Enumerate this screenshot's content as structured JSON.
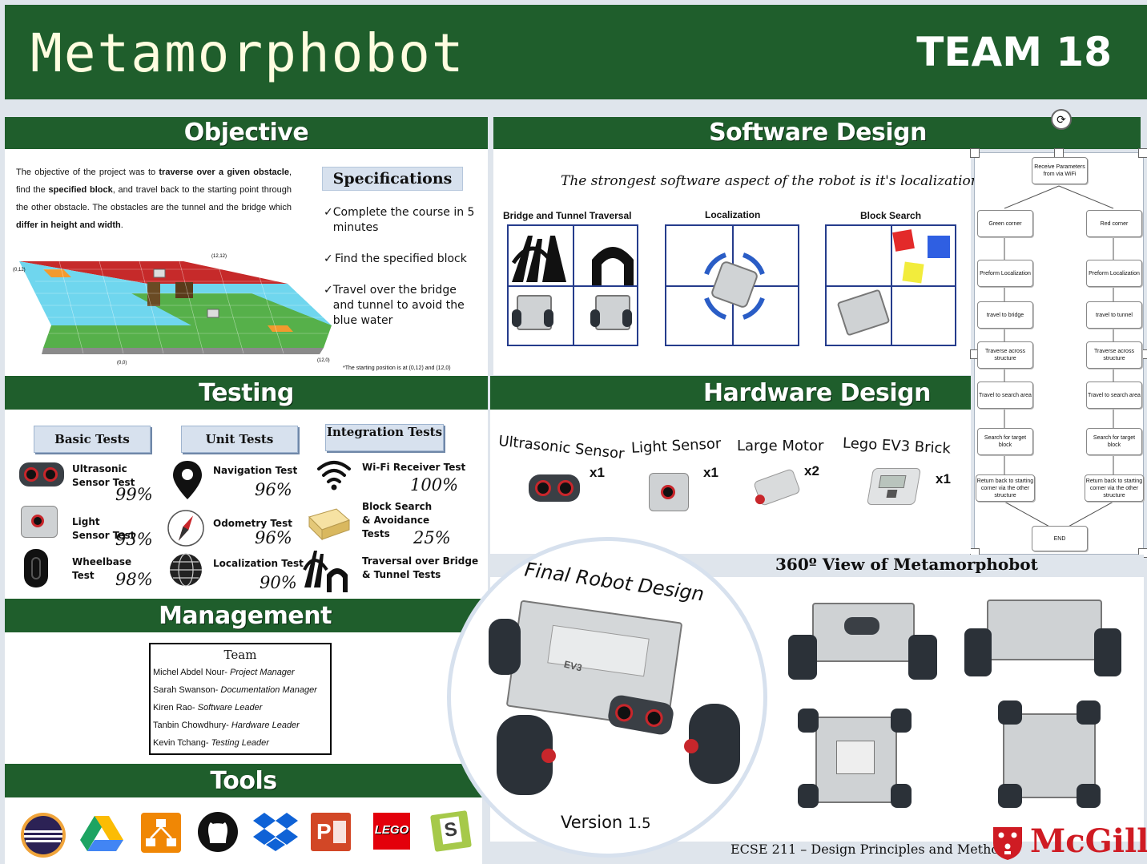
{
  "header": {
    "title": "Metamorphobot",
    "team": "TEAM 18"
  },
  "objective": {
    "title": "Objective",
    "text_parts": [
      "The objective of the project was to ",
      "traverse over a given obstacle",
      ", find the ",
      "specified block",
      ", and travel back to the starting point through the other obstacle. The obstacles are the tunnel and the bridge which ",
      "differ in height and width",
      "."
    ],
    "map_labels": {
      "tl": "(0,12)",
      "tr": "(12,12)",
      "bl": "(0,0)",
      "br": "(12,0)"
    },
    "footnote": "*The starting position is at (0,12) and (12,0)"
  },
  "specifications": {
    "title": "Specifications",
    "items": [
      {
        "check": "✓",
        "text": "Complete the course in 5 minutes"
      },
      {
        "check": "✓",
        "text": "Find the specified block"
      },
      {
        "check": "✓",
        "text": "Travel over the bridge and tunnel to avoid the blue water"
      }
    ]
  },
  "testing": {
    "title": "Testing",
    "columns": [
      "Basic Tests",
      "Unit Tests",
      "Integration Tests"
    ],
    "basic": [
      {
        "label": "Ultrasonic Sensor Test",
        "pct": "99%",
        "icon": "ultrasonic-sensor-icon"
      },
      {
        "label": "Light Sensor Test",
        "pct": "93%",
        "icon": "light-sensor-icon"
      },
      {
        "label": "Wheelbase Test",
        "pct": "98%",
        "icon": "wheel-icon"
      }
    ],
    "unit": [
      {
        "label": "Navigation Test",
        "pct": "96%",
        "icon": "map-pin-icon"
      },
      {
        "label": "Odometry Test",
        "pct": "96%",
        "icon": "compass-icon"
      },
      {
        "label": "Localization Test",
        "pct": "90%",
        "icon": "globe-icon"
      }
    ],
    "integration": [
      {
        "label": "Wi-Fi Receiver Test",
        "pct": "100%",
        "icon": "wifi-icon"
      },
      {
        "label": "Block Search & Avoidance Tests",
        "pct": "25%",
        "icon": "block-icon"
      },
      {
        "label": "Traversal over Bridge & Tunnel Tests",
        "pct": "",
        "icon": "bridge-tunnel-icon"
      }
    ]
  },
  "management": {
    "title": "Management",
    "team_heading": "Team",
    "members": [
      {
        "name": "Michel Abdel Nour- ",
        "role": "Project Manager"
      },
      {
        "name": "Sarah Swanson- ",
        "role": "Documentation Manager"
      },
      {
        "name": "Kiren Rao- ",
        "role": "Software Leader"
      },
      {
        "name": "Tanbin Chowdhury- ",
        "role": "Hardware Leader"
      },
      {
        "name": "Kevin Tchang- ",
        "role": "Testing Leader"
      }
    ]
  },
  "tools": {
    "title": "Tools",
    "icons": [
      "eclipse-icon",
      "google-drive-icon",
      "draw-io-icon",
      "github-icon",
      "dropbox-icon",
      "powerpoint-icon",
      "lego-icon",
      "sharelatex-icon"
    ],
    "lego_text": "LEGO",
    "ppt_letter": "P",
    "s_letter": "S"
  },
  "software": {
    "title": "Software Design",
    "tagline": "The strongest software aspect of the robot is it's localization",
    "panels": [
      "Bridge and Tunnel Traversal",
      "Localization",
      "Block Search"
    ]
  },
  "flowchart": {
    "start": "Receive Parameters from via WiFi",
    "left": [
      "Green corner",
      "Preform Localization",
      "travel to bridge",
      "Traverse across structure",
      "Travel to search area",
      "Search for target block",
      "Return back to starting corner via the other structure"
    ],
    "right": [
      "Red corner",
      "Preform Localization",
      "travel to tunnel",
      "Traverse across structure",
      "Travel to search area",
      "Search for target block",
      "Return back to starting corner via the other structure"
    ],
    "end": "END"
  },
  "hardware": {
    "title": "Hardware Design",
    "parts": [
      {
        "name": "Ultrasonic Sensor",
        "qty": "x1"
      },
      {
        "name": "Light Sensor",
        "qty": "x1"
      },
      {
        "name": "Large Motor",
        "qty": "x2"
      },
      {
        "name": "Lego EV3 Brick",
        "qty": "x1"
      }
    ]
  },
  "final_design": {
    "title": "Final Robot Design",
    "version_label": "Version",
    "version_num": "1.5",
    "brick_text": "EV3"
  },
  "view360": {
    "title": "360º View of Metamorphobot"
  },
  "footer": {
    "course": "ECSE 211 – Design Principles and Methods",
    "university": "McGill"
  },
  "colors": {
    "green": "#1f5e2c",
    "accent_blue": "#253c8c",
    "mcgill_red": "#cf1b23"
  }
}
